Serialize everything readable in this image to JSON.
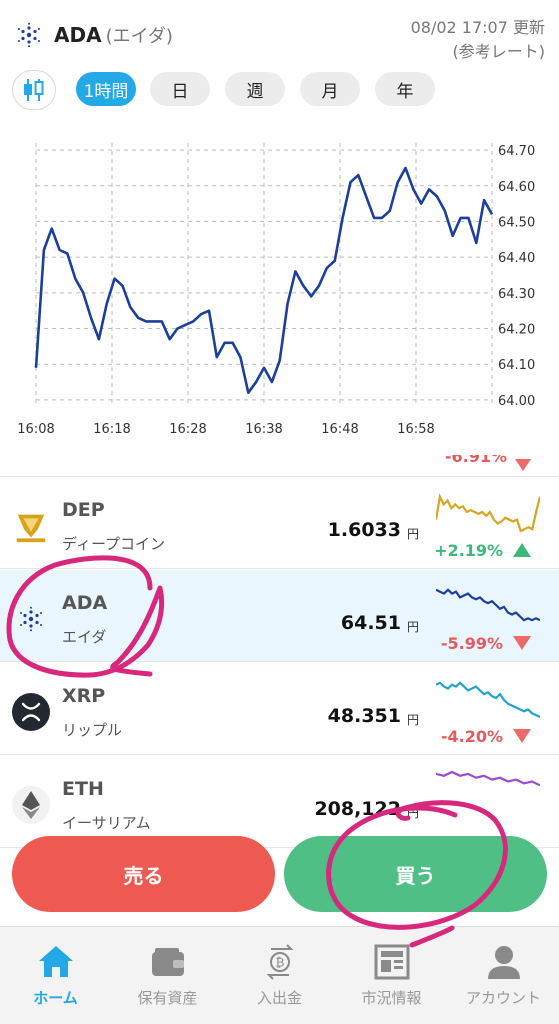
{
  "header": {
    "symbol": "ADA",
    "name": "(エイダ)",
    "updated": "08/02 17:07 更新",
    "ref": "(参考レート)"
  },
  "tabs": [
    {
      "label": "1時間",
      "active": true
    },
    {
      "label": "日",
      "active": false
    },
    {
      "label": "週",
      "active": false
    },
    {
      "label": "月",
      "active": false
    },
    {
      "label": "年",
      "active": false
    }
  ],
  "chart_data": {
    "type": "line",
    "x_ticks": [
      "16:08",
      "16:18",
      "16:28",
      "16:38",
      "16:48",
      "16:58"
    ],
    "y_ticks": [
      "64.70",
      "64.60",
      "64.50",
      "64.40",
      "64.30",
      "64.20",
      "64.10",
      "64.00"
    ],
    "ylim": [
      63.98,
      64.72
    ],
    "series": [
      {
        "values": [
          64.09,
          64.42,
          64.48,
          64.42,
          64.41,
          64.34,
          64.3,
          64.23,
          64.17,
          64.27,
          64.34,
          64.32,
          64.26,
          64.23,
          64.22,
          64.22,
          64.22,
          64.17,
          64.2,
          64.21,
          64.22,
          64.24,
          64.25,
          64.12,
          64.16,
          64.16,
          64.12,
          64.02,
          64.05,
          64.09,
          64.05,
          64.11,
          64.27,
          64.36,
          64.32,
          64.29,
          64.32,
          64.37,
          64.39,
          64.51,
          64.61,
          64.63,
          64.57,
          64.51,
          64.51,
          64.53,
          64.61,
          64.65,
          64.59,
          64.55,
          64.59,
          64.57,
          64.53,
          64.46,
          64.51,
          64.51,
          64.44,
          64.56,
          64.52
        ]
      }
    ]
  },
  "list": {
    "partial_change": "-6.91%",
    "rows": [
      {
        "symbol": "DEP",
        "name": "ディープコイン",
        "price": "1.6033",
        "yen": "円",
        "change": "+2.19%",
        "dir": "up",
        "spark_color": "#d8a520",
        "spark": [
          0.3,
          0.9,
          0.7,
          0.8,
          0.6,
          0.7,
          0.6,
          0.65,
          0.5,
          0.55,
          0.5,
          0.45,
          0.5,
          0.4,
          0.5,
          0.3,
          0.2,
          0.25,
          0.35,
          0.3,
          0.25,
          0.3,
          0.0,
          0.05,
          0.1,
          0.05,
          0.5,
          0.9
        ]
      },
      {
        "symbol": "ADA",
        "name": "エイダ",
        "price": "64.51",
        "yen": "円",
        "change": "-5.99%",
        "dir": "down",
        "spark_color": "#1c3f9c",
        "spark": [
          0.9,
          0.85,
          0.8,
          0.9,
          0.8,
          0.85,
          0.7,
          0.75,
          0.8,
          0.7,
          0.65,
          0.7,
          0.6,
          0.55,
          0.6,
          0.5,
          0.4,
          0.45,
          0.3,
          0.25,
          0.3,
          0.2,
          0.1,
          0.15,
          0.1,
          0.15,
          0.1
        ]
      },
      {
        "symbol": "XRP",
        "name": "リップル",
        "price": "48.351",
        "yen": "円",
        "change": "-4.20%",
        "dir": "down",
        "spark_color": "#22a3c7",
        "spark": [
          0.85,
          0.9,
          0.8,
          0.75,
          0.85,
          0.8,
          0.9,
          0.8,
          0.7,
          0.75,
          0.8,
          0.7,
          0.6,
          0.65,
          0.55,
          0.5,
          0.6,
          0.45,
          0.35,
          0.3,
          0.25,
          0.2,
          0.15,
          0.2,
          0.1,
          0.05,
          0.0
        ]
      },
      {
        "symbol": "ETH",
        "name": "イーサリアム",
        "price": "208,122",
        "yen": "円",
        "change": "",
        "dir": "",
        "spark_color": "#9a4bd0",
        "spark": [
          0.95,
          0.9,
          1.0,
          0.9,
          0.95,
          0.85,
          0.9,
          0.8,
          0.85,
          0.75,
          0.8,
          0.7,
          0.75,
          0.65
        ]
      }
    ]
  },
  "actions": {
    "sell": "売る",
    "buy": "買う"
  },
  "nav": [
    {
      "label": "ホーム",
      "icon": "home-icon",
      "active": true
    },
    {
      "label": "保有資産",
      "icon": "wallet-icon",
      "active": false
    },
    {
      "label": "入出金",
      "icon": "transfer-icon",
      "active": false
    },
    {
      "label": "市況情報",
      "icon": "news-icon",
      "active": false
    },
    {
      "label": "アカウント",
      "icon": "account-icon",
      "active": false
    }
  ],
  "colors": {
    "accent": "#22a9e6",
    "line": "#1c3f9c",
    "sell": "#ee5a52",
    "buy": "#4fbf86",
    "annotation": "#d8287e"
  }
}
